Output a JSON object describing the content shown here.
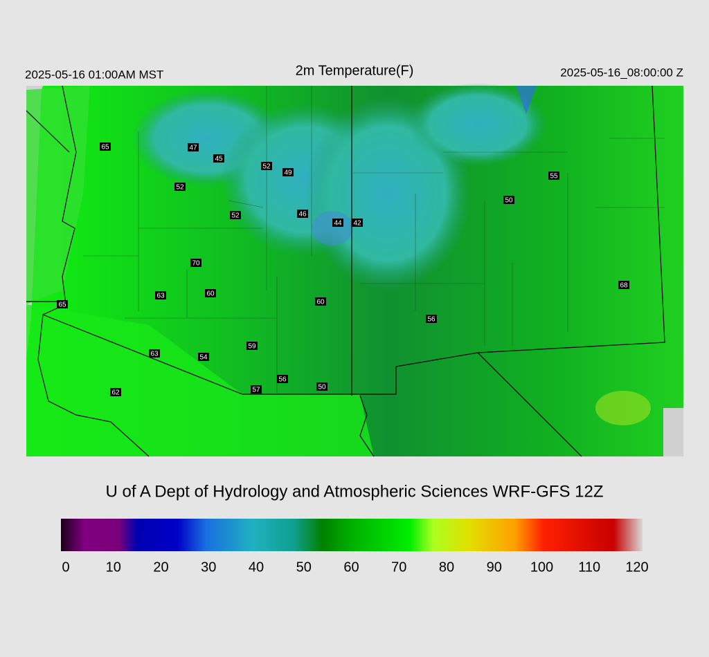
{
  "header": {
    "local_time": "2025-05-16 01:00AM MST",
    "title": "2m Temperature(F)",
    "valid_time": "2025-05-16_08:00:00 Z"
  },
  "stations": [
    65,
    47,
    45,
    52,
    49,
    52,
    55,
    50,
    52,
    46,
    44,
    42,
    70,
    68,
    63,
    60,
    60,
    65,
    56,
    59,
    63,
    54,
    56,
    57,
    50,
    62
  ],
  "credit": "U of A Dept of Hydrology and Atmospheric Sciences WRF-GFS 12Z",
  "colorbar": {
    "ticks": [
      0,
      10,
      20,
      30,
      40,
      50,
      60,
      70,
      80,
      90,
      100,
      110,
      120
    ]
  }
}
